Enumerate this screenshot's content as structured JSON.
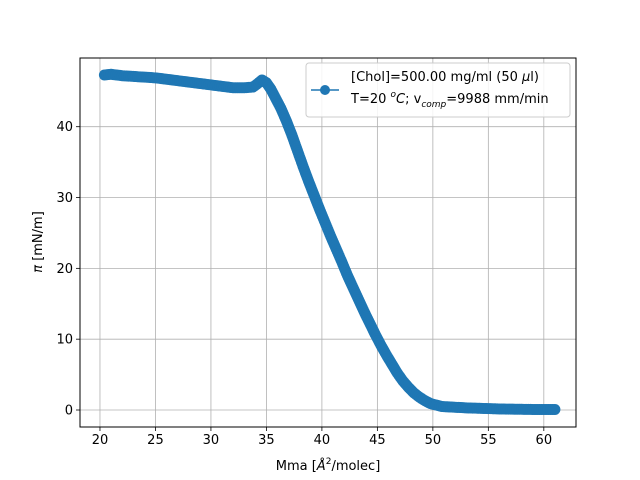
{
  "chart_data": {
    "type": "scatter",
    "xlabel_main": "Mma [",
    "xlabel_sym": "Å",
    "xlabel_sup": "2",
    "xlabel_tail": "/molec]",
    "ylabel_sym": "π",
    "ylabel_tail": " [mN/m]",
    "xlim": [
      18.2,
      62.9
    ],
    "ylim": [
      -2.4,
      49.7
    ],
    "xticks": [
      20,
      25,
      30,
      35,
      40,
      45,
      50,
      55,
      60
    ],
    "yticks": [
      0,
      10,
      20,
      30,
      40
    ],
    "grid": true,
    "legend_position": "upper right",
    "color": "#1f77b4",
    "legend": {
      "line1": "[Chol]=500.00 mg/ml (50 ",
      "line1_mu": "μ",
      "line1_end": "l)",
      "line2_a": "T=20 ",
      "line2_o": "o",
      "line2_c": "C",
      "line2_b": "; v",
      "line2_sub": "comp",
      "line2_c2": "=9988 mm/min"
    },
    "series": [
      {
        "x": [
          20.4,
          21.0,
          22.0,
          23.0,
          24.0,
          25.0,
          26.0,
          27.0,
          28.0,
          29.0,
          30.0,
          31.0,
          32.0,
          33.0,
          33.8,
          34.3,
          34.6,
          35.0,
          35.4,
          35.8,
          36.3,
          36.8,
          37.3,
          37.8,
          38.3,
          38.8,
          39.3,
          39.8,
          40.3,
          40.8,
          41.3,
          41.8,
          42.3,
          42.8,
          43.3,
          43.8,
          44.3,
          44.8,
          45.3,
          45.8,
          46.3,
          46.8,
          47.3,
          47.8,
          48.3,
          48.8,
          49.3,
          49.8,
          50.3,
          50.8,
          51.3,
          51.8,
          52.5,
          53.0,
          54.0,
          55.0,
          56.0,
          57.0,
          58.0,
          59.0,
          60.0,
          61.0
        ],
        "y": [
          47.3,
          47.4,
          47.2,
          47.1,
          47.0,
          46.9,
          46.7,
          46.5,
          46.3,
          46.1,
          45.9,
          45.7,
          45.5,
          45.5,
          45.6,
          46.2,
          46.6,
          46.2,
          45.3,
          44.1,
          42.6,
          40.8,
          38.8,
          36.6,
          34.4,
          32.3,
          30.3,
          28.3,
          26.4,
          24.5,
          22.7,
          20.9,
          19.0,
          17.3,
          15.6,
          13.9,
          12.3,
          10.7,
          9.2,
          7.8,
          6.5,
          5.2,
          4.1,
          3.2,
          2.4,
          1.8,
          1.3,
          0.9,
          0.7,
          0.5,
          0.45,
          0.4,
          0.35,
          0.3,
          0.25,
          0.2,
          0.15,
          0.12,
          0.1,
          0.08,
          0.07,
          0.07
        ]
      }
    ]
  }
}
